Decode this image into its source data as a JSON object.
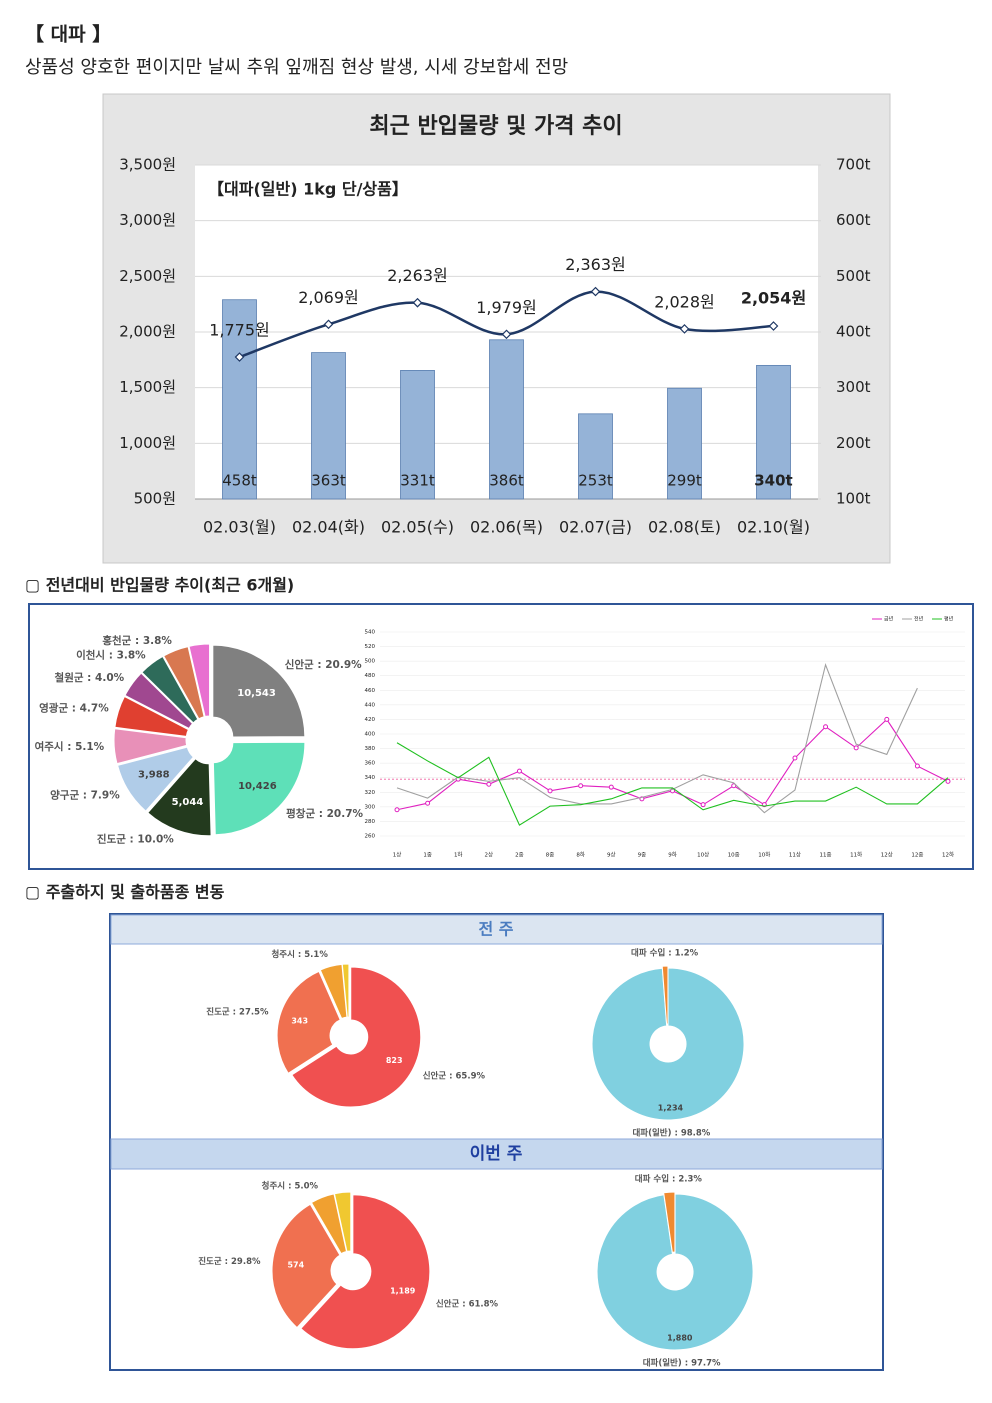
{
  "header": {
    "title": "【 대파 】",
    "subtitle": "상품성 양호한 편이지만 날씨 추워 잎깨짐 현상 발생, 시세 강보합세 전망"
  },
  "sections": [
    "▢ 전년대비 반입물량 추이(최근 6개월)",
    "▢ 주출하지 및 출하품종 변동"
  ],
  "panels": [
    "전 주",
    "이번 주"
  ],
  "chart_data": [
    {
      "type": "combo",
      "title": "최근 반입물량 및 가격 추이",
      "subtitle": "【대파(일반) 1kg 단/상품】",
      "categories": [
        "02.03(월)",
        "02.04(화)",
        "02.05(수)",
        "02.06(목)",
        "02.07(금)",
        "02.08(토)",
        "02.10(월)"
      ],
      "series": [
        {
          "type": "bar",
          "axis": "y2",
          "color": "#95b3d7",
          "values": [
            458,
            363,
            331,
            386,
            253,
            299,
            340
          ],
          "value_labels": [
            "458t",
            "363t",
            "331t",
            "386t",
            "253t",
            "299t",
            "340t"
          ]
        },
        {
          "type": "line",
          "color": "#1f3864",
          "values": [
            1775,
            2069,
            2263,
            1979,
            2363,
            2028,
            2054
          ],
          "value_labels": [
            "1,775원",
            "2,069원",
            "2,263원",
            "1,979원",
            "2,363원",
            "2,028원",
            "2,054원"
          ]
        }
      ],
      "highlight_last": true,
      "grid": true,
      "ylim": [
        500,
        3500
      ],
      "yticks": [
        {
          "value": 500,
          "label": "500원"
        },
        {
          "value": 1000,
          "label": "1,000원"
        },
        {
          "value": 1500,
          "label": "1,500원"
        },
        {
          "value": 2000,
          "label": "2,000원"
        },
        {
          "value": 2500,
          "label": "2,500원"
        },
        {
          "value": 3000,
          "label": "3,000원"
        },
        {
          "value": 3500,
          "label": "3,500원"
        }
      ],
      "y2lim": [
        100,
        700
      ],
      "y2ticks": [
        {
          "value": 100,
          "label": "100t"
        },
        {
          "value": 200,
          "label": "200t"
        },
        {
          "value": 300,
          "label": "300t"
        },
        {
          "value": 400,
          "label": "400t"
        },
        {
          "value": 500,
          "label": "500t"
        },
        {
          "value": 600,
          "label": "600t"
        },
        {
          "value": 700,
          "label": "700t"
        }
      ]
    },
    {
      "type": "donut",
      "labels": [
        "신안군 : 20.9%",
        "평창군 : 20.7%",
        "진도군 : 10.0%",
        "양구군 : 7.9%",
        "여주시 : 5.1%",
        "영광군 : 4.7%",
        "철원군 : 4.0%",
        "이천시 : 3.8%",
        "홍천군 : 3.8%",
        null
      ],
      "values": [
        20.9,
        20.7,
        10.0,
        7.9,
        5.1,
        4.7,
        4.0,
        3.8,
        3.8,
        3
      ],
      "colors": [
        "#808080",
        "#5ee0b8",
        "#233a1e",
        "#b0cce8",
        "#e890b8",
        "#e04030",
        "#a04890",
        "#2e6b5a",
        "#d87850",
        "#e870d0"
      ],
      "amounts": [
        {
          "value": 10543,
          "label": "10,543"
        },
        {
          "value": 10426,
          "label": "10,426"
        },
        {
          "value": 5044,
          "label": "5,044"
        },
        {
          "value": 3988,
          "label": "3,988"
        },
        null,
        null,
        null,
        null,
        null,
        null
      ]
    },
    {
      "type": "line",
      "legend": "top-right",
      "grid": true,
      "categories": [
        "1상",
        "1중",
        "1하",
        "2상",
        "2중",
        "8중",
        "8하",
        "9상",
        "9중",
        "9하",
        "10상",
        "10중",
        "10하",
        "11상",
        "11중",
        "11하",
        "12상",
        "12중",
        "12하"
      ],
      "series": [
        {
          "name": "금년",
          "color": "#e020c0",
          "markers": true,
          "values": [
            296,
            305,
            338,
            331,
            349,
            322,
            329,
            327,
            311,
            322,
            303,
            329,
            303,
            367,
            410,
            381,
            420,
            356,
            335
          ]
        },
        {
          "name": "전년",
          "color": "#a0a0a0",
          "markers": false,
          "values": [
            326,
            312,
            341,
            335,
            340,
            313,
            304,
            304,
            313,
            324,
            344,
            333,
            292,
            323,
            495,
            386,
            372,
            463,
            null
          ]
        },
        {
          "name": "평년",
          "color": "#20c020",
          "markers": false,
          "values": [
            388,
            363,
            340,
            368,
            275,
            301,
            303,
            311,
            326,
            326,
            296,
            309,
            301,
            308,
            308,
            327,
            304,
            304,
            340
          ]
        }
      ],
      "reference_line": 338,
      "ylim": [
        260,
        540
      ],
      "yticks": [
        260,
        280,
        300,
        320,
        340,
        360,
        380,
        400,
        420,
        440,
        460,
        480,
        500,
        520,
        540
      ]
    },
    {
      "type": "donut",
      "labels": [
        "신안군 : 65.9%",
        "진도군 : 27.5%",
        "청주시 : 5.1%",
        null
      ],
      "values": [
        65.9,
        27.5,
        5.1,
        1.5
      ],
      "colors": [
        "#f05050",
        "#f07050",
        "#f0a030",
        "#f0c830"
      ],
      "amounts": [
        {
          "value": 823,
          "label": "823"
        },
        {
          "value": 343,
          "label": "343"
        },
        null,
        null
      ]
    },
    {
      "type": "donut",
      "labels": [
        "대파(일반) : 98.8%",
        "대파 수입 : 1.2%"
      ],
      "values": [
        98.8,
        1.2
      ],
      "colors": [
        "#80d0e0",
        "#f08a30"
      ],
      "amounts": [
        {
          "value": 1234,
          "label": "1,234"
        },
        null
      ]
    },
    {
      "type": "donut",
      "labels": [
        "신안군 : 61.8%",
        "진도군 : 29.8%",
        "청주시 : 5.0%",
        null
      ],
      "values": [
        61.8,
        29.8,
        5.0,
        3.4
      ],
      "colors": [
        "#f05050",
        "#f07050",
        "#f0a030",
        "#f0c830"
      ],
      "amounts": [
        {
          "value": 1189,
          "label": "1,189"
        },
        {
          "value": 574,
          "label": "574"
        },
        null,
        null
      ]
    },
    {
      "type": "donut",
      "labels": [
        "대파(일반) : 97.7%",
        "대파 수입 : 2.3%"
      ],
      "values": [
        97.7,
        2.3
      ],
      "colors": [
        "#80d0e0",
        "#f08a30"
      ],
      "amounts": [
        {
          "value": 1880,
          "label": "1,880"
        },
        null
      ]
    }
  ]
}
